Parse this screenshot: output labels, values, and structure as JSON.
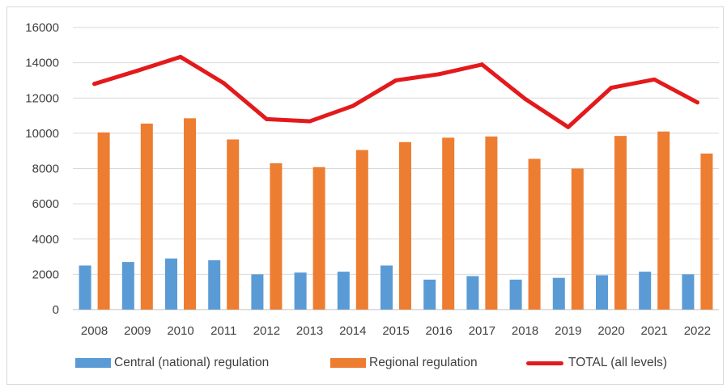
{
  "chart_data": {
    "type": "bar",
    "categories": [
      "2008",
      "2009",
      "2010",
      "2011",
      "2012",
      "2013",
      "2014",
      "2015",
      "2016",
      "2017",
      "2018",
      "2019",
      "2020",
      "2021",
      "2022"
    ],
    "series": [
      {
        "name": "Central (national) regulation",
        "kind": "bar",
        "values": [
          2500,
          2700,
          2900,
          2800,
          2000,
          2100,
          2150,
          2500,
          1700,
          1900,
          1700,
          1800,
          1950,
          2150,
          2000
        ],
        "color": "#5b9bd5"
      },
      {
        "name": "Regional regulation",
        "kind": "bar",
        "values": [
          10050,
          10550,
          10850,
          9650,
          8300,
          8080,
          9050,
          9500,
          9750,
          9820,
          8550,
          8000,
          9850,
          10100,
          8850
        ],
        "color": "#ed7d31"
      },
      {
        "name": "TOTAL (all levels)",
        "kind": "line",
        "values": [
          12800,
          13550,
          14330,
          12850,
          10800,
          10680,
          11550,
          13000,
          13350,
          13900,
          11950,
          10350,
          12580,
          13050,
          11750
        ],
        "color": "#e31a1c"
      }
    ],
    "yticks": [
      "0",
      "2000",
      "4000",
      "6000",
      "8000",
      "10000",
      "12000",
      "14000",
      "16000"
    ],
    "ylim": [
      0,
      16000
    ],
    "grid": true,
    "legend_position": "bottom",
    "title": "",
    "xlabel": "",
    "ylabel": ""
  }
}
